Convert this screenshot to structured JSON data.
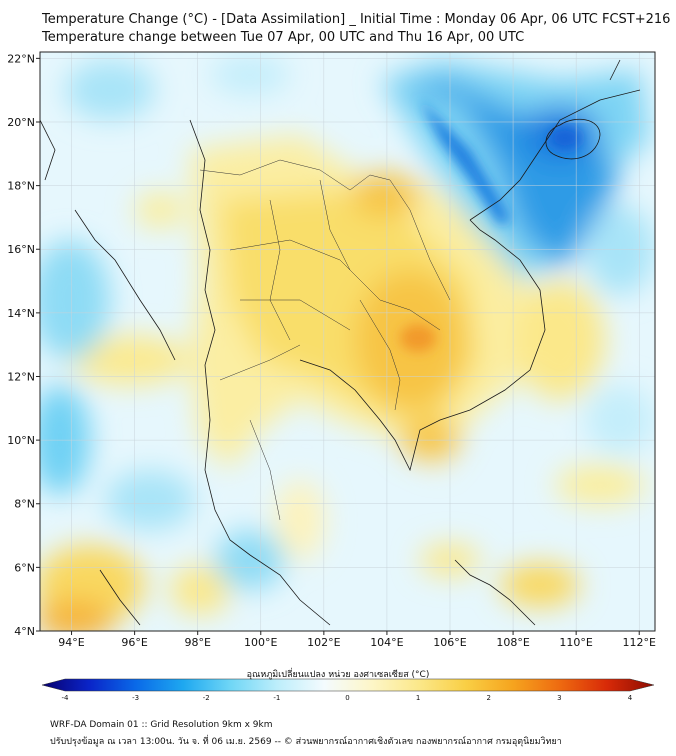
{
  "header": {
    "title_line1": "Temperature Change (°C) - [Data Assimilation] _ Initial Time : Monday 06 Apr, 06 UTC FCST+216",
    "title_line2": "Temperature change between Tue 07 Apr, 00 UTC and Thu 16 Apr, 00 UTC"
  },
  "map": {
    "lon_ticks": [
      "94°E",
      "96°E",
      "98°E",
      "100°E",
      "102°E",
      "104°E",
      "106°E",
      "108°E",
      "110°E",
      "112°E"
    ],
    "lon_values": [
      94,
      96,
      98,
      100,
      102,
      104,
      106,
      108,
      110,
      112
    ],
    "lat_ticks": [
      "22°N",
      "20°N",
      "18°N",
      "16°N",
      "14°N",
      "12°N",
      "10°N",
      "8°N",
      "6°N",
      "4°N"
    ],
    "lat_values": [
      22,
      20,
      18,
      16,
      14,
      12,
      10,
      8,
      6,
      4
    ],
    "lon_range": [
      93,
      112.5
    ],
    "lat_range": [
      4,
      22.2
    ]
  },
  "colorbar": {
    "label": "อุณหภูมิเปลี่ยนแปลง หน่วย องศาเซลเซียส (°C)",
    "ticks": [
      "-4",
      "-3",
      "-2",
      "-1",
      "0",
      "1",
      "2",
      "3",
      "4"
    ],
    "tick_values": [
      -4,
      -3,
      -2,
      -1,
      0,
      1,
      2,
      3,
      4
    ],
    "colors": [
      "#08006e",
      "#0a24c8",
      "#0a6ae8",
      "#1ea8f0",
      "#6fd6f6",
      "#bdeefb",
      "#f4fbfe",
      "#fdf6c8",
      "#fbe88a",
      "#f9cf45",
      "#f6a41e",
      "#ee6a10",
      "#d82a08",
      "#8c0c02"
    ]
  },
  "footer": {
    "line1": "WRF-DA Domain 01 :: Grid Resolution 9km x 9km",
    "line2": "ปรับปรุงข้อมูล ณ เวลา 13:00น. วัน จ. ที่ 06 เม.ย. 2569 -- © ส่วนพยากรณ์อากาศเชิงตัวเลข กองพยากรณ์อากาศ กรมอุตุนิยมวิทยา"
  }
}
